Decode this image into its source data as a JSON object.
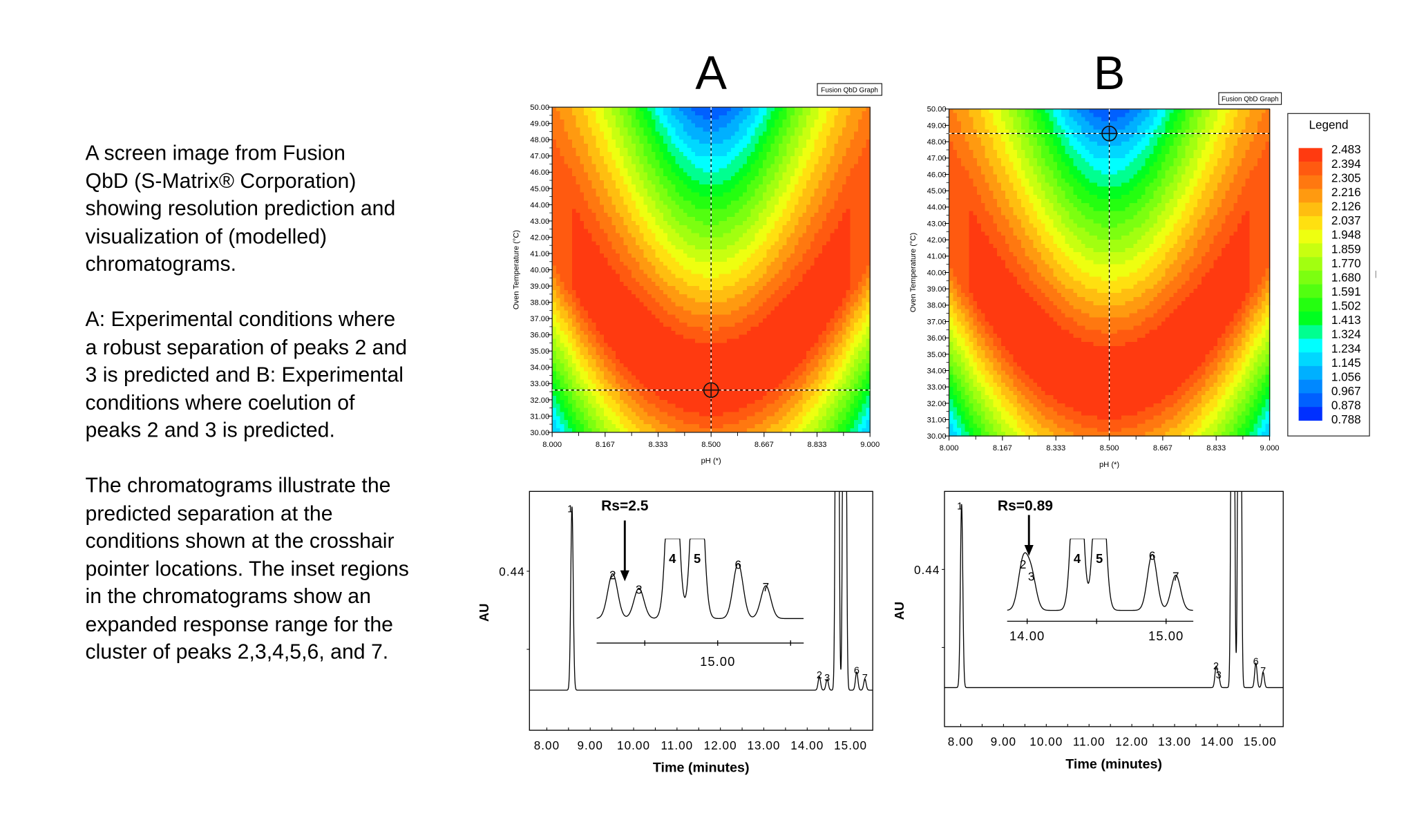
{
  "caption": {
    "paragraphs": [
      [
        "A screen image from Fusion",
        "QbD (S-Matrix® Corporation)",
        "showing resolution prediction and",
        "visualization of (modelled)",
        "chromatograms."
      ],
      [
        "A: Experimental conditions where",
        "a robust separation of peaks 2 and",
        "3 is predicted and B: Experimental",
        "conditions where coelution of",
        "peaks 2 and 3 is predicted."
      ],
      [
        "The chromatograms illustrate the",
        "predicted separation at the",
        "conditions shown at the crosshair",
        "pointer locations. The inset regions",
        "in the chromatograms show an",
        "expanded response range for the",
        "cluster of peaks 2,3,4,5,6, and 7."
      ]
    ]
  },
  "legend": {
    "title": "Legend",
    "levels": [
      "2.483",
      "2.394",
      "2.305",
      "2.216",
      "2.126",
      "2.037",
      "1.948",
      "1.859",
      "1.770",
      "1.680",
      "1.591",
      "1.502",
      "1.413",
      "1.324",
      "1.234",
      "1.145",
      "1.056",
      "0.967",
      "0.878",
      "0.788"
    ],
    "colors": [
      "#ff3a10",
      "#ff5a10",
      "#ff7810",
      "#ff9a10",
      "#ffbe10",
      "#ffe010",
      "#eeff10",
      "#c8ff10",
      "#a2ff10",
      "#7cff10",
      "#52ff10",
      "#24ff10",
      "#00ff20",
      "#00ff90",
      "#00ffff",
      "#00d8ff",
      "#00b0ff",
      "#0088ff",
      "#0060ff",
      "#0030ff"
    ]
  },
  "chart_data": [
    {
      "type": "heatmap",
      "panel": "A",
      "badge": "Fusion QbD Graph",
      "xlabel": "pH (*)",
      "ylabel": "Oven Temperature (°C)",
      "xlim": [
        8.0,
        9.0
      ],
      "ylim": [
        30.0,
        50.0
      ],
      "xticks": [
        "8.000",
        "8.167",
        "8.333",
        "8.500",
        "8.667",
        "8.833",
        "9.000"
      ],
      "yticks": [
        "30.00",
        "31.00",
        "32.00",
        "33.00",
        "34.00",
        "35.00",
        "36.00",
        "37.00",
        "38.00",
        "39.00",
        "40.00",
        "41.00",
        "42.00",
        "43.00",
        "44.00",
        "45.00",
        "46.00",
        "47.00",
        "48.00",
        "49.00",
        "50.00"
      ],
      "response": "resolution (peaks 2/3)",
      "max_region": "red U-shaped band centred at pH 8.500, ~33 °C",
      "crosshair": {
        "pH": 8.5,
        "temperature": 32.6
      }
    },
    {
      "type": "heatmap",
      "panel": "B",
      "badge": "Fusion QbD Graph",
      "xlabel": "pH (*)",
      "ylabel": "Oven Temperature (°C)",
      "xlim": [
        8.0,
        9.0
      ],
      "ylim": [
        30.0,
        50.0
      ],
      "xticks": [
        "8.000",
        "8.167",
        "8.333",
        "8.500",
        "8.667",
        "8.833",
        "9.000"
      ],
      "yticks": [
        "30.00",
        "31.00",
        "32.00",
        "33.00",
        "34.00",
        "35.00",
        "36.00",
        "37.00",
        "38.00",
        "39.00",
        "40.00",
        "41.00",
        "42.00",
        "43.00",
        "44.00",
        "45.00",
        "46.00",
        "47.00",
        "48.00",
        "49.00",
        "50.00"
      ],
      "crosshair": {
        "pH": 8.5,
        "temperature": 48.5
      }
    },
    {
      "type": "line",
      "panel": "A",
      "xlabel": "Time (minutes)",
      "ylabel": "AU",
      "xlim": [
        7.6,
        15.51
      ],
      "ylim": [
        -0.008,
        0.665
      ],
      "xticks": [
        "8.00",
        "9.00",
        "10.00",
        "11.00",
        "12.00",
        "13.00",
        "14.00",
        "15.00"
      ],
      "yticks": [
        {
          "value": 0.44,
          "label": "0.44"
        },
        {
          "value": 0.22,
          "label": ""
        }
      ],
      "baseline": 0.105,
      "peaks": [
        {
          "label": "1",
          "time": 8.58,
          "height": 0.622
        },
        {
          "label": "2",
          "time": 14.28,
          "height": 0.143
        },
        {
          "label": "3",
          "time": 14.46,
          "height": 0.136
        },
        {
          "label": "4",
          "time": 14.69,
          "height": 3.0
        },
        {
          "label": "5",
          "time": 14.86,
          "height": 3.0
        },
        {
          "label": "6",
          "time": 15.14,
          "height": 0.156
        },
        {
          "label": "7",
          "time": 15.33,
          "height": 0.136
        }
      ],
      "annotation": "Rs=2.5",
      "inset": {
        "xlim": [
          14.17,
          15.59
        ],
        "ticks": [
          {
            "value": 14.5,
            "label": ""
          },
          {
            "value": 15.0,
            "label": "15.00"
          },
          {
            "value": 15.5,
            "label": ""
          }
        ],
        "peaks": [
          {
            "label": "2",
            "time": 14.28,
            "relative_height": 0.56
          },
          {
            "label": "3",
            "time": 14.46,
            "relative_height": 0.38
          },
          {
            "label": "4",
            "time": 14.69,
            "relative_height": 3.0
          },
          {
            "label": "5",
            "time": 14.86,
            "relative_height": 3.0
          },
          {
            "label": "6",
            "time": 15.14,
            "relative_height": 0.69
          },
          {
            "label": "7",
            "time": 15.33,
            "relative_height": 0.41
          }
        ]
      }
    },
    {
      "type": "line",
      "panel": "B",
      "xlabel": "Time (minutes)",
      "ylabel": "AU",
      "xlim": [
        7.62,
        15.54
      ],
      "ylim": [
        -0.003,
        0.66
      ],
      "xticks": [
        "8.00",
        "9.00",
        "10.00",
        "11.00",
        "12.00",
        "13.00",
        "14.00",
        "15.00"
      ],
      "yticks": [
        {
          "value": 0.44,
          "label": "0.44"
        },
        {
          "value": 0.22,
          "label": ""
        }
      ],
      "baseline": 0.107,
      "peaks": [
        {
          "label": "1",
          "time": 8.02,
          "height": 0.624
        },
        {
          "label": "2",
          "time": 13.97,
          "height": 0.164
        },
        {
          "label": "3",
          "time": 14.03,
          "height": 0.138
        },
        {
          "label": "4",
          "time": 14.36,
          "height": 3.0
        },
        {
          "label": "5",
          "time": 14.52,
          "height": 3.0
        },
        {
          "label": "6",
          "time": 14.9,
          "height": 0.176
        },
        {
          "label": "7",
          "time": 15.07,
          "height": 0.15
        }
      ],
      "annotation": "Rs=0.89",
      "inset": {
        "xlim": [
          13.856,
          15.196
        ],
        "ticks": [
          {
            "value": 14.0,
            "label": "14.00"
          },
          {
            "value": 14.5,
            "label": ""
          },
          {
            "value": 15.0,
            "label": "15.00"
          }
        ],
        "peaks": [
          {
            "label": "2",
            "time": 13.97,
            "relative_height": 0.66
          },
          {
            "label": "3",
            "time": 14.03,
            "relative_height": 0.49
          },
          {
            "label": "4",
            "time": 14.36,
            "relative_height": 3.0
          },
          {
            "label": "5",
            "time": 14.52,
            "relative_height": 3.0
          },
          {
            "label": "6",
            "time": 14.9,
            "relative_height": 0.78
          },
          {
            "label": "7",
            "time": 15.07,
            "relative_height": 0.49
          }
        ]
      }
    }
  ]
}
